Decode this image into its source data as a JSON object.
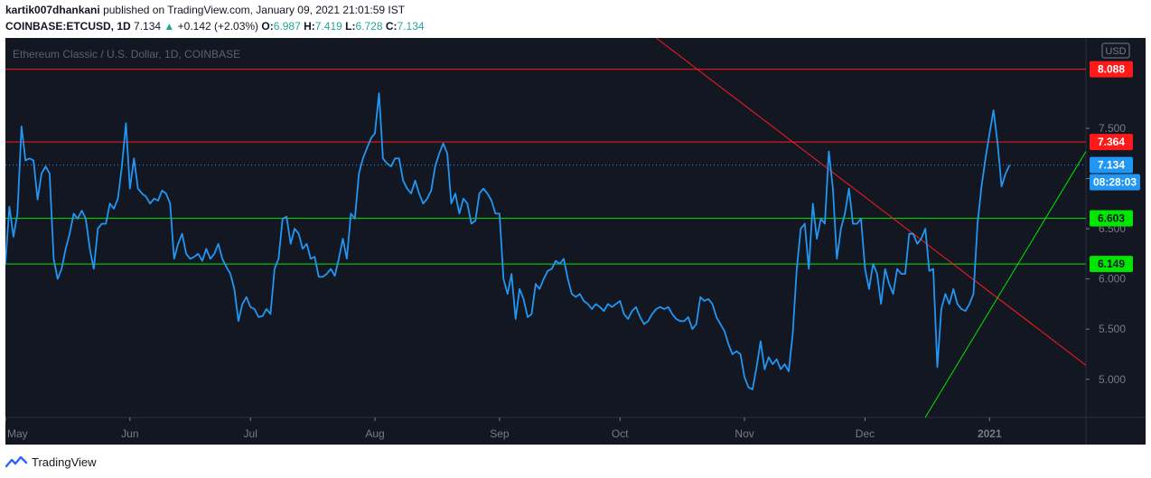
{
  "header": {
    "author": "kartik007dhankani",
    "published": "published on TradingView.com, January 09, 2021 21:01:59 IST",
    "symbol": "COINBASE:ETCUSD, 1D",
    "last": "7.134",
    "change_arrow": "▲",
    "change": "+0.142 (+2.03%)",
    "o_label": "O:",
    "o_value": "6.987",
    "h_label": "H:",
    "h_value": "7.419",
    "l_label": "L:",
    "l_value": "6.728",
    "c_label": "C:",
    "c_value": "7.134"
  },
  "footer": {
    "brand": "TradingView",
    "logo_icon": "tradingview-logo-icon"
  },
  "colors": {
    "background": "#131722",
    "price_line": "#2196f3",
    "resistance": "#ff1a1a",
    "support": "#00e600",
    "axis_text": "#787b86",
    "up": "#26a69a"
  },
  "chart_data": {
    "type": "line",
    "title": "Ethereum Classic / U.S. Dollar, 1D, COINBASE",
    "currency_label": "USD",
    "x_ticks": [
      {
        "label": "May",
        "date": "2020-05-01"
      },
      {
        "label": "Jun",
        "date": "2020-06-01"
      },
      {
        "label": "Jul",
        "date": "2020-07-01"
      },
      {
        "label": "Aug",
        "date": "2020-08-01"
      },
      {
        "label": "Sep",
        "date": "2020-09-01"
      },
      {
        "label": "Oct",
        "date": "2020-10-01"
      },
      {
        "label": "Nov",
        "date": "2020-11-01"
      },
      {
        "label": "Dec",
        "date": "2020-12-01"
      },
      {
        "label": "2021",
        "date": "2021-01-01"
      }
    ],
    "y_ticks": [
      "5.000",
      "5.500",
      "6.000",
      "6.500",
      "7.000",
      "7.500"
    ],
    "ylim": [
      4.62,
      8.4
    ],
    "xlim": [
      "2020-05-01",
      "2021-01-25"
    ],
    "series": [
      {
        "values": [
          [
            "2020-05-01",
            6.15
          ],
          [
            "2020-05-02",
            6.72
          ],
          [
            "2020-05-03",
            6.42
          ],
          [
            "2020-05-04",
            6.65
          ],
          [
            "2020-05-05",
            7.52
          ],
          [
            "2020-05-06",
            7.18
          ],
          [
            "2020-05-07",
            7.2
          ],
          [
            "2020-05-08",
            7.18
          ],
          [
            "2020-05-09",
            6.79
          ],
          [
            "2020-05-10",
            7.05
          ],
          [
            "2020-05-11",
            7.12
          ],
          [
            "2020-05-12",
            7.05
          ],
          [
            "2020-05-13",
            6.2
          ],
          [
            "2020-05-14",
            6.0
          ],
          [
            "2020-05-15",
            6.1
          ],
          [
            "2020-05-16",
            6.3
          ],
          [
            "2020-05-17",
            6.45
          ],
          [
            "2020-05-18",
            6.65
          ],
          [
            "2020-05-19",
            6.6
          ],
          [
            "2020-05-20",
            6.68
          ],
          [
            "2020-05-21",
            6.6
          ],
          [
            "2020-05-22",
            6.3
          ],
          [
            "2020-05-23",
            6.1
          ],
          [
            "2020-05-24",
            6.5
          ],
          [
            "2020-05-25",
            6.55
          ],
          [
            "2020-05-26",
            6.55
          ],
          [
            "2020-05-27",
            6.75
          ],
          [
            "2020-05-28",
            6.7
          ],
          [
            "2020-05-29",
            6.8
          ],
          [
            "2020-05-30",
            7.12
          ],
          [
            "2020-05-31",
            7.55
          ],
          [
            "2020-06-01",
            6.9
          ],
          [
            "2020-06-02",
            7.2
          ],
          [
            "2020-06-03",
            6.9
          ],
          [
            "2020-06-04",
            6.85
          ],
          [
            "2020-06-05",
            6.82
          ],
          [
            "2020-06-06",
            6.75
          ],
          [
            "2020-06-07",
            6.8
          ],
          [
            "2020-06-08",
            6.78
          ],
          [
            "2020-06-09",
            6.88
          ],
          [
            "2020-06-10",
            6.85
          ],
          [
            "2020-06-11",
            6.75
          ],
          [
            "2020-06-12",
            6.2
          ],
          [
            "2020-06-13",
            6.35
          ],
          [
            "2020-06-14",
            6.45
          ],
          [
            "2020-06-15",
            6.25
          ],
          [
            "2020-06-16",
            6.2
          ],
          [
            "2020-06-17",
            6.22
          ],
          [
            "2020-06-18",
            6.25
          ],
          [
            "2020-06-19",
            6.18
          ],
          [
            "2020-06-20",
            6.3
          ],
          [
            "2020-06-21",
            6.2
          ],
          [
            "2020-06-22",
            6.25
          ],
          [
            "2020-06-23",
            6.35
          ],
          [
            "2020-06-24",
            6.2
          ],
          [
            "2020-06-25",
            6.12
          ],
          [
            "2020-06-26",
            6.05
          ],
          [
            "2020-06-27",
            5.9
          ],
          [
            "2020-06-28",
            5.58
          ],
          [
            "2020-06-29",
            5.75
          ],
          [
            "2020-06-30",
            5.82
          ],
          [
            "2020-07-01",
            5.72
          ],
          [
            "2020-07-02",
            5.7
          ],
          [
            "2020-07-03",
            5.62
          ],
          [
            "2020-07-04",
            5.63
          ],
          [
            "2020-07-05",
            5.7
          ],
          [
            "2020-07-06",
            5.65
          ],
          [
            "2020-07-07",
            6.1
          ],
          [
            "2020-07-08",
            6.2
          ],
          [
            "2020-07-09",
            6.6
          ],
          [
            "2020-07-10",
            6.62
          ],
          [
            "2020-07-11",
            6.35
          ],
          [
            "2020-07-12",
            6.5
          ],
          [
            "2020-07-13",
            6.45
          ],
          [
            "2020-07-14",
            6.3
          ],
          [
            "2020-07-15",
            6.35
          ],
          [
            "2020-07-16",
            6.2
          ],
          [
            "2020-07-17",
            6.22
          ],
          [
            "2020-07-18",
            6.02
          ],
          [
            "2020-07-19",
            6.02
          ],
          [
            "2020-07-20",
            6.05
          ],
          [
            "2020-07-21",
            6.1
          ],
          [
            "2020-07-22",
            6.03
          ],
          [
            "2020-07-23",
            6.2
          ],
          [
            "2020-07-24",
            6.4
          ],
          [
            "2020-07-25",
            6.2
          ],
          [
            "2020-07-26",
            6.65
          ],
          [
            "2020-07-27",
            6.6
          ],
          [
            "2020-07-28",
            7.05
          ],
          [
            "2020-07-29",
            7.2
          ],
          [
            "2020-07-30",
            7.3
          ],
          [
            "2020-07-31",
            7.4
          ],
          [
            "2020-08-01",
            7.45
          ],
          [
            "2020-08-02",
            7.85
          ],
          [
            "2020-08-03",
            7.2
          ],
          [
            "2020-08-04",
            7.15
          ],
          [
            "2020-08-05",
            7.12
          ],
          [
            "2020-08-06",
            7.2
          ],
          [
            "2020-08-07",
            7.2
          ],
          [
            "2020-08-08",
            6.98
          ],
          [
            "2020-08-09",
            6.9
          ],
          [
            "2020-08-10",
            6.85
          ],
          [
            "2020-08-11",
            6.98
          ],
          [
            "2020-08-12",
            6.85
          ],
          [
            "2020-08-13",
            6.75
          ],
          [
            "2020-08-14",
            6.8
          ],
          [
            "2020-08-15",
            6.88
          ],
          [
            "2020-08-16",
            7.12
          ],
          [
            "2020-08-17",
            7.25
          ],
          [
            "2020-08-18",
            7.35
          ],
          [
            "2020-08-19",
            7.25
          ],
          [
            "2020-08-20",
            6.75
          ],
          [
            "2020-08-21",
            6.85
          ],
          [
            "2020-08-22",
            6.65
          ],
          [
            "2020-08-23",
            6.8
          ],
          [
            "2020-08-24",
            6.75
          ],
          [
            "2020-08-25",
            6.55
          ],
          [
            "2020-08-26",
            6.58
          ],
          [
            "2020-08-27",
            6.85
          ],
          [
            "2020-08-28",
            6.9
          ],
          [
            "2020-08-29",
            6.85
          ],
          [
            "2020-08-30",
            6.78
          ],
          [
            "2020-08-31",
            6.65
          ],
          [
            "2020-09-01",
            6.65
          ],
          [
            "2020-09-02",
            6.0
          ],
          [
            "2020-09-03",
            5.85
          ],
          [
            "2020-09-04",
            6.05
          ],
          [
            "2020-09-05",
            5.6
          ],
          [
            "2020-09-06",
            5.9
          ],
          [
            "2020-09-07",
            5.8
          ],
          [
            "2020-09-08",
            5.62
          ],
          [
            "2020-09-09",
            5.65
          ],
          [
            "2020-09-10",
            5.95
          ],
          [
            "2020-09-11",
            5.9
          ],
          [
            "2020-09-12",
            6.0
          ],
          [
            "2020-09-13",
            6.08
          ],
          [
            "2020-09-14",
            6.1
          ],
          [
            "2020-09-15",
            6.18
          ],
          [
            "2020-09-16",
            6.15
          ],
          [
            "2020-09-17",
            6.2
          ],
          [
            "2020-09-18",
            6.0
          ],
          [
            "2020-09-19",
            5.85
          ],
          [
            "2020-09-20",
            5.82
          ],
          [
            "2020-09-21",
            5.85
          ],
          [
            "2020-09-22",
            5.78
          ],
          [
            "2020-09-23",
            5.75
          ],
          [
            "2020-09-24",
            5.7
          ],
          [
            "2020-09-25",
            5.75
          ],
          [
            "2020-09-26",
            5.72
          ],
          [
            "2020-09-27",
            5.68
          ],
          [
            "2020-09-28",
            5.75
          ],
          [
            "2020-09-29",
            5.72
          ],
          [
            "2020-09-30",
            5.75
          ],
          [
            "2020-10-01",
            5.78
          ],
          [
            "2020-10-02",
            5.65
          ],
          [
            "2020-10-03",
            5.6
          ],
          [
            "2020-10-04",
            5.68
          ],
          [
            "2020-10-05",
            5.72
          ],
          [
            "2020-10-06",
            5.62
          ],
          [
            "2020-10-07",
            5.55
          ],
          [
            "2020-10-08",
            5.58
          ],
          [
            "2020-10-09",
            5.65
          ],
          [
            "2020-10-10",
            5.7
          ],
          [
            "2020-10-11",
            5.72
          ],
          [
            "2020-10-12",
            5.7
          ],
          [
            "2020-10-13",
            5.72
          ],
          [
            "2020-10-14",
            5.65
          ],
          [
            "2020-10-15",
            5.6
          ],
          [
            "2020-10-16",
            5.58
          ],
          [
            "2020-10-17",
            5.58
          ],
          [
            "2020-10-18",
            5.62
          ],
          [
            "2020-10-19",
            5.5
          ],
          [
            "2020-10-20",
            5.55
          ],
          [
            "2020-10-21",
            5.82
          ],
          [
            "2020-10-22",
            5.78
          ],
          [
            "2020-10-23",
            5.8
          ],
          [
            "2020-10-24",
            5.75
          ],
          [
            "2020-10-25",
            5.62
          ],
          [
            "2020-10-26",
            5.55
          ],
          [
            "2020-10-27",
            5.48
          ],
          [
            "2020-10-28",
            5.35
          ],
          [
            "2020-10-29",
            5.25
          ],
          [
            "2020-10-30",
            5.28
          ],
          [
            "2020-10-31",
            5.25
          ],
          [
            "2020-11-01",
            5.02
          ],
          [
            "2020-11-02",
            4.92
          ],
          [
            "2020-11-03",
            4.9
          ],
          [
            "2020-11-04",
            5.12
          ],
          [
            "2020-11-05",
            5.38
          ],
          [
            "2020-11-06",
            5.1
          ],
          [
            "2020-11-07",
            5.22
          ],
          [
            "2020-11-08",
            5.15
          ],
          [
            "2020-11-09",
            5.2
          ],
          [
            "2020-11-10",
            5.1
          ],
          [
            "2020-11-11",
            5.15
          ],
          [
            "2020-11-12",
            5.08
          ],
          [
            "2020-11-13",
            5.45
          ],
          [
            "2020-11-14",
            6.1
          ],
          [
            "2020-11-15",
            6.5
          ],
          [
            "2020-11-16",
            6.55
          ],
          [
            "2020-11-17",
            6.1
          ],
          [
            "2020-11-18",
            6.75
          ],
          [
            "2020-11-19",
            6.4
          ],
          [
            "2020-11-20",
            6.6
          ],
          [
            "2020-11-21",
            6.55
          ],
          [
            "2020-11-22",
            7.27
          ],
          [
            "2020-11-23",
            6.9
          ],
          [
            "2020-11-24",
            6.2
          ],
          [
            "2020-11-25",
            6.5
          ],
          [
            "2020-11-26",
            6.65
          ],
          [
            "2020-11-27",
            6.9
          ],
          [
            "2020-11-28",
            6.55
          ],
          [
            "2020-11-29",
            6.55
          ],
          [
            "2020-11-30",
            6.6
          ],
          [
            "2020-12-01",
            6.1
          ],
          [
            "2020-12-02",
            5.9
          ],
          [
            "2020-12-03",
            6.15
          ],
          [
            "2020-12-04",
            6.05
          ],
          [
            "2020-12-05",
            5.75
          ],
          [
            "2020-12-06",
            6.1
          ],
          [
            "2020-12-07",
            5.95
          ],
          [
            "2020-12-08",
            5.85
          ],
          [
            "2020-12-09",
            6.1
          ],
          [
            "2020-12-10",
            6.05
          ],
          [
            "2020-12-11",
            6.05
          ],
          [
            "2020-12-12",
            6.45
          ],
          [
            "2020-12-13",
            6.45
          ],
          [
            "2020-12-14",
            6.35
          ],
          [
            "2020-12-15",
            6.4
          ],
          [
            "2020-12-16",
            6.5
          ],
          [
            "2020-12-17",
            6.08
          ],
          [
            "2020-12-18",
            6.1
          ],
          [
            "2020-12-19",
            5.12
          ],
          [
            "2020-12-20",
            5.7
          ],
          [
            "2020-12-21",
            5.85
          ],
          [
            "2020-12-22",
            5.75
          ],
          [
            "2020-12-23",
            5.9
          ],
          [
            "2020-12-24",
            5.75
          ],
          [
            "2020-12-25",
            5.7
          ],
          [
            "2020-12-26",
            5.68
          ],
          [
            "2020-12-27",
            5.75
          ],
          [
            "2020-12-28",
            5.85
          ],
          [
            "2020-12-29",
            6.55
          ],
          [
            "2020-12-30",
            6.92
          ],
          [
            "2020-12-31",
            7.2
          ],
          [
            "2021-01-01",
            7.45
          ],
          [
            "2021-01-02",
            7.68
          ],
          [
            "2021-01-03",
            7.35
          ],
          [
            "2021-01-04",
            6.92
          ],
          [
            "2021-01-05",
            7.05
          ],
          [
            "2021-01-06",
            7.134
          ]
        ]
      }
    ],
    "horizontal_levels": [
      {
        "label": "8.088",
        "value": 8.088,
        "color": "#ff1a1a"
      },
      {
        "label": "7.364",
        "value": 7.364,
        "color": "#ff1a1a"
      },
      {
        "label": "6.603",
        "value": 6.603,
        "color": "#00e600"
      },
      {
        "label": "6.149",
        "value": 6.149,
        "color": "#00e600"
      }
    ],
    "current_price": {
      "label": "7.134",
      "value": 7.134,
      "countdown": "08:28:03"
    },
    "trendlines": [
      {
        "color": "#ff1a1a",
        "from": [
          "2020-10-10",
          8.4
        ],
        "to": [
          "2021-01-25",
          5.14
        ]
      },
      {
        "color": "#00e600",
        "from": [
          "2020-12-16",
          4.62
        ],
        "to": [
          "2021-01-25",
          7.27
        ]
      }
    ]
  }
}
